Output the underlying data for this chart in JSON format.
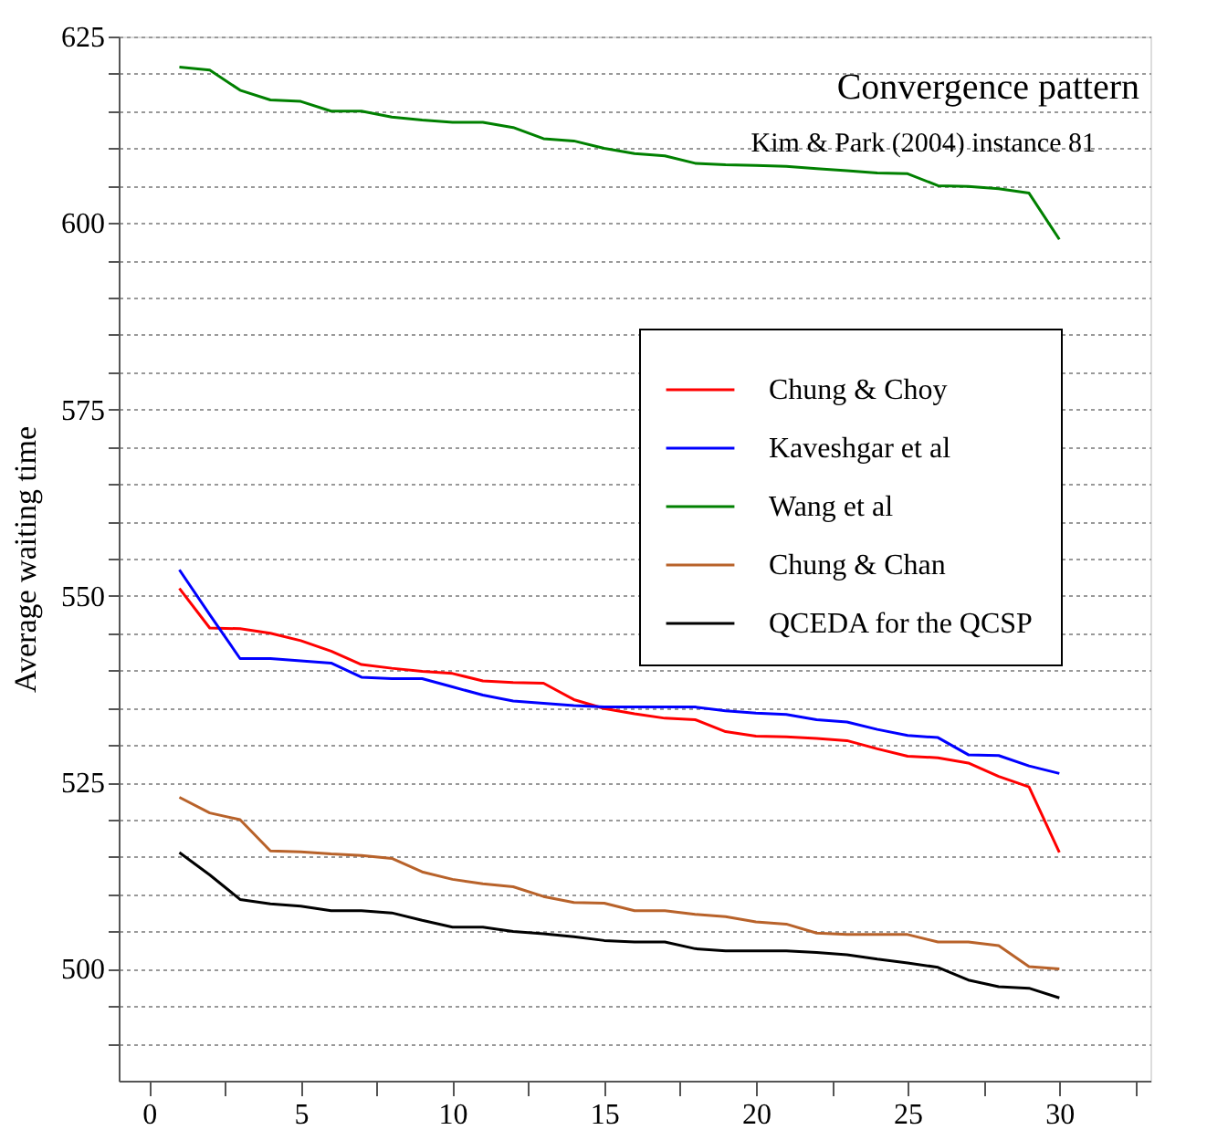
{
  "chart_data": {
    "type": "line",
    "title": "Convergence pattern",
    "subtitle": "Kim & Park (2004) instance 81",
    "ylabel": "Average waiting time",
    "x": [
      1,
      2,
      3,
      4,
      5,
      6,
      7,
      8,
      9,
      10,
      11,
      12,
      13,
      14,
      15,
      16,
      17,
      18,
      19,
      20,
      21,
      22,
      23,
      24,
      25,
      26,
      27,
      28,
      29,
      30
    ],
    "series": [
      {
        "name": "Chung & Choy",
        "color": "#ff0000",
        "values": [
          551,
          545.7,
          545.6,
          545,
          544,
          542.6,
          540.8,
          540.3,
          539.9,
          539.6,
          538.6,
          538.4,
          538.3,
          536.1,
          534.9,
          534.2,
          533.6,
          533.4,
          531.8,
          531.2,
          531.1,
          530.9,
          530.6,
          529.5,
          528.5,
          528.3,
          527.6,
          525.8,
          524.4,
          515.6
        ]
      },
      {
        "name": "Kaveshgar et al",
        "color": "#0000ff",
        "values": [
          553.5,
          547.5,
          541.6,
          541.6,
          541.3,
          541,
          539.1,
          538.9,
          538.9,
          537.8,
          536.7,
          535.9,
          535.6,
          535.3,
          535.1,
          535.1,
          535.1,
          535.1,
          534.6,
          534.3,
          534.1,
          533.4,
          533.1,
          532.1,
          531.3,
          531,
          528.7,
          528.6,
          527.2,
          526.2
        ]
      },
      {
        "name": "Wang et al",
        "color": "#008000",
        "values": [
          620.9,
          620.5,
          617.8,
          616.5,
          616.3,
          615,
          615,
          614.2,
          613.8,
          613.5,
          613.5,
          612.8,
          611.3,
          611,
          610,
          609.3,
          609,
          608,
          607.8,
          607.7,
          607.6,
          607.3,
          607,
          606.7,
          606.6,
          605,
          604.9,
          604.6,
          604,
          597.8
        ]
      },
      {
        "name": "Chung & Chan",
        "color": "#b8622a",
        "values": [
          523,
          520.9,
          520,
          515.8,
          515.7,
          515.4,
          515.2,
          514.8,
          513,
          512,
          511.4,
          511,
          509.7,
          508.9,
          508.8,
          507.8,
          507.8,
          507.3,
          507,
          506.3,
          506,
          504.8,
          504.6,
          504.6,
          504.6,
          503.6,
          503.6,
          503.1,
          500.3,
          500
        ]
      },
      {
        "name": "QCEDA for the QCSP",
        "color": "#000000",
        "values": [
          515.6,
          512.6,
          509.3,
          508.7,
          508.4,
          507.8,
          507.8,
          507.5,
          506.5,
          505.6,
          505.6,
          505,
          504.7,
          504.3,
          503.8,
          503.6,
          503.6,
          502.7,
          502.4,
          502.4,
          502.4,
          502.2,
          501.9,
          501.3,
          500.8,
          500.2,
          498.5,
          497.6,
          497.4,
          496.1
        ]
      }
    ],
    "xlim": [
      -1,
      33
    ],
    "xticks": [
      0,
      {
        "value": 2.5,
        "label": null
      },
      5,
      {
        "value": 7.5,
        "label": null
      },
      10,
      {
        "value": 12.5,
        "label": null
      },
      15,
      {
        "value": 17.5,
        "label": null
      },
      20,
      {
        "value": 22.5,
        "label": null
      },
      25,
      {
        "value": 27.5,
        "label": null
      },
      30,
      {
        "value": 32.5,
        "label": null
      }
    ],
    "ylim": [
      485,
      625
    ],
    "yticks": [
      {
        "value": 490,
        "label": null
      },
      {
        "value": 495,
        "label": null
      },
      500,
      {
        "value": 505,
        "label": null
      },
      {
        "value": 510,
        "label": null
      },
      {
        "value": 515,
        "label": null
      },
      {
        "value": 520,
        "label": null
      },
      525,
      {
        "value": 530,
        "label": null
      },
      {
        "value": 535,
        "label": null
      },
      {
        "value": 540,
        "label": null
      },
      {
        "value": 545,
        "label": null
      },
      550,
      {
        "value": 555,
        "label": null
      },
      {
        "value": 560,
        "label": null
      },
      {
        "value": 565,
        "label": null
      },
      {
        "value": 570,
        "label": null
      },
      575,
      {
        "value": 580,
        "label": null
      },
      {
        "value": 585,
        "label": null
      },
      {
        "value": 590,
        "label": null
      },
      {
        "value": 595,
        "label": null
      },
      600,
      {
        "value": 605,
        "label": null
      },
      {
        "value": 610,
        "label": null
      },
      {
        "value": 615,
        "label": null
      },
      {
        "value": 620,
        "label": null
      },
      625
    ],
    "grid": "y",
    "legend": "top right",
    "marker": "none",
    "line_style": "solid"
  }
}
